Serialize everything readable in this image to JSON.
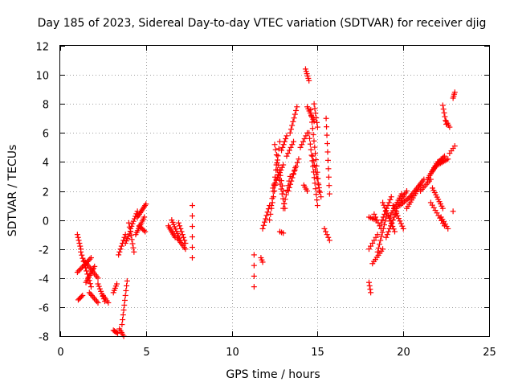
{
  "chart_data": {
    "type": "scatter",
    "title": "Day 185 of 2023, Sidereal Day-to-day VTEC variation (SDTVAR) for receiver djig",
    "xlabel": "GPS time / hours",
    "ylabel": "SDTVAR / TECUs",
    "xlim": [
      0,
      25
    ],
    "ylim": [
      -8,
      12
    ],
    "xticks": [
      "0",
      "5",
      "10",
      "15",
      "20",
      "25"
    ],
    "yticks": [
      "-8",
      "-6",
      "-4",
      "-2",
      "0",
      "2",
      "4",
      "6",
      "8",
      "10",
      "12"
    ],
    "grid": true,
    "marker": "+",
    "marker_color": "#ff0000",
    "segments": [
      {
        "x0": 1.0,
        "x1": 1.2,
        "y0": -1.0,
        "y1": -2.0,
        "n": 6
      },
      {
        "x0": 1.05,
        "x1": 1.3,
        "y0": -5.5,
        "y1": -5.2,
        "n": 5
      },
      {
        "x0": 1.0,
        "x1": 1.8,
        "y0": -3.6,
        "y1": -2.6,
        "n": 12
      },
      {
        "x0": 1.2,
        "x1": 1.8,
        "y0": -2.2,
        "y1": -4.6,
        "n": 12
      },
      {
        "x0": 1.4,
        "x1": 2.2,
        "y0": -2.8,
        "y1": -4.0,
        "n": 12
      },
      {
        "x0": 1.5,
        "x1": 2.0,
        "y0": -4.3,
        "y1": -3.2,
        "n": 10
      },
      {
        "x0": 1.7,
        "x1": 2.2,
        "y0": -5.0,
        "y1": -5.7,
        "n": 8
      },
      {
        "x0": 2.2,
        "x1": 2.6,
        "y0": -4.4,
        "y1": -5.6,
        "n": 8
      },
      {
        "x0": 2.5,
        "x1": 2.8,
        "y0": -5.2,
        "y1": -5.7,
        "n": 5
      },
      {
        "x0": 3.1,
        "x1": 3.3,
        "y0": -5.0,
        "y1": -4.4,
        "n": 5
      },
      {
        "x0": 3.1,
        "x1": 3.35,
        "y0": -7.6,
        "y1": -7.8,
        "n": 5
      },
      {
        "x0": 3.45,
        "x1": 3.7,
        "y0": -7.5,
        "y1": -8.0,
        "n": 5
      },
      {
        "x0": 3.6,
        "x1": 3.9,
        "y0": -7.2,
        "y1": -4.2,
        "n": 10
      },
      {
        "x0": 3.4,
        "x1": 3.8,
        "y0": -2.4,
        "y1": -1.0,
        "n": 8
      },
      {
        "x0": 3.8,
        "x1": 4.1,
        "y0": -1.6,
        "y1": -0.8,
        "n": 6
      },
      {
        "x0": 4.0,
        "x1": 4.3,
        "y0": -0.2,
        "y1": -2.2,
        "n": 8
      },
      {
        "x0": 4.1,
        "x1": 4.5,
        "y0": -0.6,
        "y1": 0.6,
        "n": 8
      },
      {
        "x0": 4.4,
        "x1": 4.9,
        "y0": -1.0,
        "y1": 0.2,
        "n": 10
      },
      {
        "x0": 4.5,
        "x1": 5.0,
        "y0": 0.2,
        "y1": 1.1,
        "n": 10
      },
      {
        "x0": 4.6,
        "x1": 4.95,
        "y0": -0.4,
        "y1": -0.8,
        "n": 6
      },
      {
        "x0": 6.3,
        "x1": 6.7,
        "y0": -0.4,
        "y1": -1.2,
        "n": 8
      },
      {
        "x0": 6.5,
        "x1": 7.0,
        "y0": 0.0,
        "y1": -1.4,
        "n": 10
      },
      {
        "x0": 6.8,
        "x1": 7.3,
        "y0": -1.2,
        "y1": -2.0,
        "n": 8
      },
      {
        "x0": 6.9,
        "x1": 7.3,
        "y0": -0.2,
        "y1": -1.6,
        "n": 8
      },
      {
        "x0": 7.7,
        "x1": 7.7,
        "y0": 1.0,
        "y1": -2.6,
        "n": 6
      },
      {
        "x0": 11.3,
        "x1": 11.3,
        "y0": -2.4,
        "y1": -4.6,
        "n": 4
      },
      {
        "x0": 11.7,
        "x1": 11.8,
        "y0": -2.6,
        "y1": -2.9,
        "n": 3
      },
      {
        "x0": 11.8,
        "x1": 12.2,
        "y0": -0.6,
        "y1": 1.0,
        "n": 8
      },
      {
        "x0": 12.2,
        "x1": 12.6,
        "y0": 0.0,
        "y1": 2.8,
        "n": 8
      },
      {
        "x0": 12.3,
        "x1": 12.8,
        "y0": 1.0,
        "y1": 5.4,
        "n": 10
      },
      {
        "x0": 12.5,
        "x1": 13.0,
        "y0": 5.2,
        "y1": 2.0,
        "n": 10
      },
      {
        "x0": 12.6,
        "x1": 13.1,
        "y0": 3.8,
        "y1": 0.8,
        "n": 10
      },
      {
        "x0": 12.4,
        "x1": 13.0,
        "y0": 2.2,
        "y1": 3.8,
        "n": 10
      },
      {
        "x0": 12.8,
        "x1": 13.0,
        "y0": -0.8,
        "y1": -0.9,
        "n": 3
      },
      {
        "x0": 12.9,
        "x1": 13.2,
        "y0": 4.8,
        "y1": 5.8,
        "n": 6
      },
      {
        "x0": 13.0,
        "x1": 13.4,
        "y0": 0.8,
        "y1": 3.0,
        "n": 8
      },
      {
        "x0": 13.2,
        "x1": 13.6,
        "y0": 4.4,
        "y1": 5.4,
        "n": 6
      },
      {
        "x0": 13.3,
        "x1": 13.7,
        "y0": 2.0,
        "y1": 3.6,
        "n": 8
      },
      {
        "x0": 13.4,
        "x1": 13.8,
        "y0": 6.0,
        "y1": 7.8,
        "n": 8
      },
      {
        "x0": 13.6,
        "x1": 13.9,
        "y0": 3.2,
        "y1": 4.2,
        "n": 5
      },
      {
        "x0": 14.0,
        "x1": 14.4,
        "y0": 5.0,
        "y1": 6.0,
        "n": 6
      },
      {
        "x0": 14.2,
        "x1": 14.4,
        "y0": 2.4,
        "y1": 2.0,
        "n": 4
      },
      {
        "x0": 14.3,
        "x1": 14.5,
        "y0": 10.4,
        "y1": 9.6,
        "n": 6
      },
      {
        "x0": 14.4,
        "x1": 14.8,
        "y0": 7.8,
        "y1": 6.8,
        "n": 8
      },
      {
        "x0": 14.5,
        "x1": 15.0,
        "y0": 6.0,
        "y1": 1.0,
        "n": 14
      },
      {
        "x0": 14.6,
        "x1": 15.1,
        "y0": 7.6,
        "y1": 2.0,
        "n": 14
      },
      {
        "x0": 14.7,
        "x1": 15.2,
        "y0": 4.4,
        "y1": 1.6,
        "n": 10
      },
      {
        "x0": 14.8,
        "x1": 15.0,
        "y0": 8.0,
        "y1": 6.4,
        "n": 6
      },
      {
        "x0": 15.5,
        "x1": 15.7,
        "y0": 7.0,
        "y1": 1.8,
        "n": 10
      },
      {
        "x0": 15.4,
        "x1": 15.7,
        "y0": -0.6,
        "y1": -1.4,
        "n": 5
      },
      {
        "x0": 18.0,
        "x1": 18.4,
        "y0": 0.2,
        "y1": 0.0,
        "n": 5
      },
      {
        "x0": 18.0,
        "x1": 18.1,
        "y0": -4.3,
        "y1": -5.0,
        "n": 4
      },
      {
        "x0": 18.0,
        "x1": 18.5,
        "y0": -2.0,
        "y1": -1.0,
        "n": 6
      },
      {
        "x0": 18.2,
        "x1": 18.8,
        "y0": -3.0,
        "y1": -2.0,
        "n": 8
      },
      {
        "x0": 18.3,
        "x1": 18.7,
        "y0": 0.4,
        "y1": -0.6,
        "n": 6
      },
      {
        "x0": 18.5,
        "x1": 19.0,
        "y0": -2.2,
        "y1": 0.2,
        "n": 10
      },
      {
        "x0": 18.7,
        "x1": 19.3,
        "y0": -0.2,
        "y1": 1.6,
        "n": 10
      },
      {
        "x0": 18.8,
        "x1": 19.5,
        "y0": 1.2,
        "y1": -0.8,
        "n": 12
      },
      {
        "x0": 19.0,
        "x1": 19.6,
        "y0": -1.2,
        "y1": 0.6,
        "n": 10
      },
      {
        "x0": 19.2,
        "x1": 19.9,
        "y0": 0.2,
        "y1": 1.8,
        "n": 12
      },
      {
        "x0": 19.4,
        "x1": 20.0,
        "y0": 1.0,
        "y1": -0.6,
        "n": 10
      },
      {
        "x0": 19.6,
        "x1": 20.2,
        "y0": 0.8,
        "y1": 2.0,
        "n": 10
      },
      {
        "x0": 19.8,
        "x1": 20.4,
        "y0": 1.0,
        "y1": 1.6,
        "n": 8
      },
      {
        "x0": 20.2,
        "x1": 21.0,
        "y0": 0.8,
        "y1": 2.4,
        "n": 12
      },
      {
        "x0": 20.4,
        "x1": 21.2,
        "y0": 1.6,
        "y1": 2.8,
        "n": 12
      },
      {
        "x0": 21.0,
        "x1": 21.6,
        "y0": 2.0,
        "y1": 2.8,
        "n": 8
      },
      {
        "x0": 21.4,
        "x1": 22.0,
        "y0": 2.8,
        "y1": 4.0,
        "n": 10
      },
      {
        "x0": 21.6,
        "x1": 22.2,
        "y0": 3.2,
        "y1": 4.2,
        "n": 10
      },
      {
        "x0": 21.8,
        "x1": 22.4,
        "y0": 3.6,
        "y1": 4.4,
        "n": 10
      },
      {
        "x0": 22.0,
        "x1": 22.6,
        "y0": 3.8,
        "y1": 4.2,
        "n": 8
      },
      {
        "x0": 21.7,
        "x1": 22.3,
        "y0": 2.2,
        "y1": 0.8,
        "n": 10
      },
      {
        "x0": 21.6,
        "x1": 22.4,
        "y0": 1.2,
        "y1": -0.4,
        "n": 10
      },
      {
        "x0": 22.2,
        "x1": 22.6,
        "y0": 0.2,
        "y1": -0.6,
        "n": 6
      },
      {
        "x0": 22.3,
        "x1": 22.5,
        "y0": 7.9,
        "y1": 6.6,
        "n": 6
      },
      {
        "x0": 22.5,
        "x1": 22.7,
        "y0": 6.8,
        "y1": 6.4,
        "n": 4
      },
      {
        "x0": 22.7,
        "x1": 23.0,
        "y0": 4.6,
        "y1": 5.1,
        "n": 4
      },
      {
        "x0": 22.9,
        "x1": 23.0,
        "y0": 8.4,
        "y1": 8.8,
        "n": 4
      },
      {
        "x0": 22.9,
        "x1": 22.9,
        "y0": 0.6,
        "y1": 0.6,
        "n": 1
      }
    ]
  }
}
